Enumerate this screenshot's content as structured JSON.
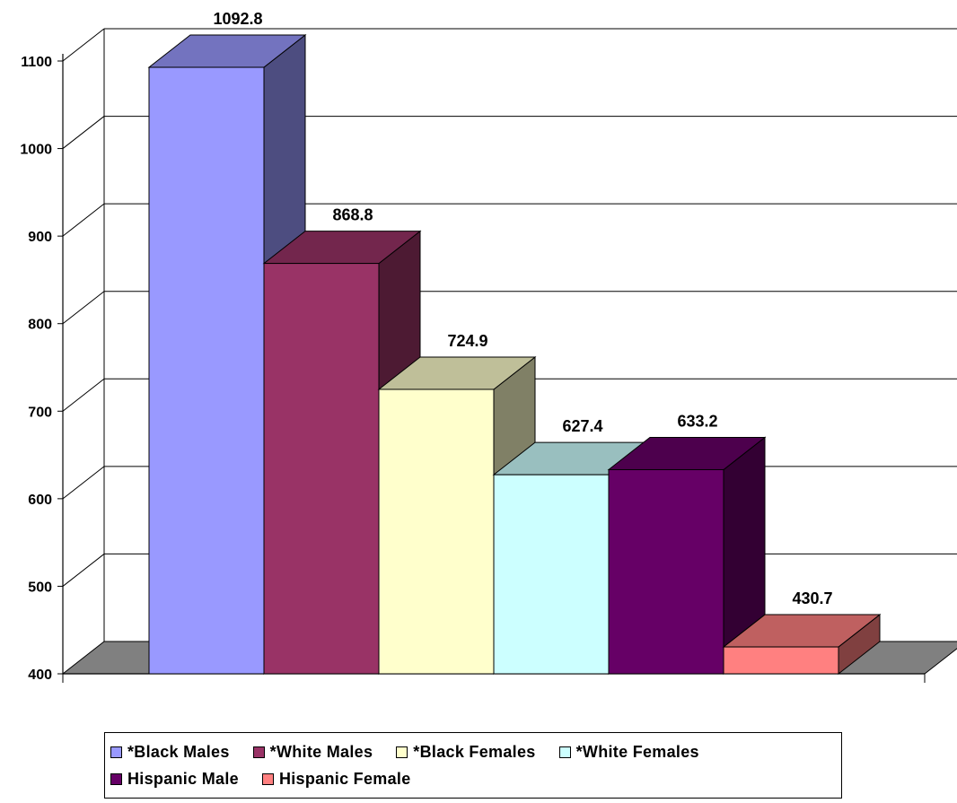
{
  "chart_data": {
    "type": "bar",
    "style": "3d",
    "categories": [
      "*Black Males",
      "*White Males",
      "*Black Females",
      "*White Females",
      "Hispanic Male",
      "Hispanic Female"
    ],
    "values": [
      1092.8,
      868.8,
      724.9,
      627.4,
      633.2,
      430.7
    ],
    "value_labels": [
      "1092.8",
      "868.8",
      "724.9",
      "627.4",
      "633.2",
      "430.7"
    ],
    "colors": [
      "#9999FF",
      "#993366",
      "#FFFFCC",
      "#CCFFFF",
      "#660066",
      "#FF8080"
    ],
    "ylim": [
      400,
      1100
    ],
    "yticks": [
      "400",
      "500",
      "600",
      "700",
      "800",
      "900",
      "1000",
      "1100"
    ],
    "grid": true,
    "legend_position": "bottom",
    "title": "",
    "xlabel": "",
    "ylabel": ""
  }
}
